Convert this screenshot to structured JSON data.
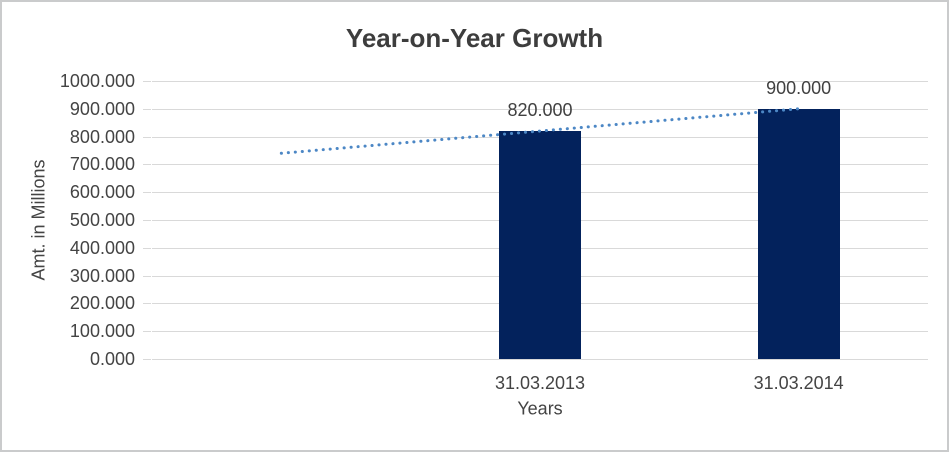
{
  "chart_data": {
    "type": "bar",
    "title": "Year-on-Year Growth",
    "xlabel": "Years",
    "ylabel": "Amt. in Millions",
    "categories": [
      "31.03.2013",
      "31.03.2014"
    ],
    "values": [
      820,
      900
    ],
    "bar_labels": [
      "820.000",
      "900.000"
    ],
    "ylim": [
      0,
      1000
    ],
    "ytick_step": 100,
    "ytick_labels": [
      "1000.000",
      "900.000",
      "800.000",
      "700.000",
      "600.000",
      "500.000",
      "400.000",
      "300.000",
      "200.000",
      "100.000",
      "0.000"
    ],
    "grid": true,
    "legend": "none",
    "num_slots": 3,
    "bar_slots": [
      1,
      2
    ],
    "bar_color": "#03225C",
    "trendline": {
      "type": "linear",
      "style": "dotted",
      "color": "#4C87C5",
      "start_slot": 0,
      "start_value": 740,
      "end_slot": 2,
      "end_value": 900
    },
    "colors": {
      "gridline": "#D9D9D9",
      "tick": "#D9D9D9",
      "axis_text": "#444444",
      "title_text": "#3D3D3D",
      "border": "#CACBCC",
      "background": "#FFFFFF"
    }
  }
}
